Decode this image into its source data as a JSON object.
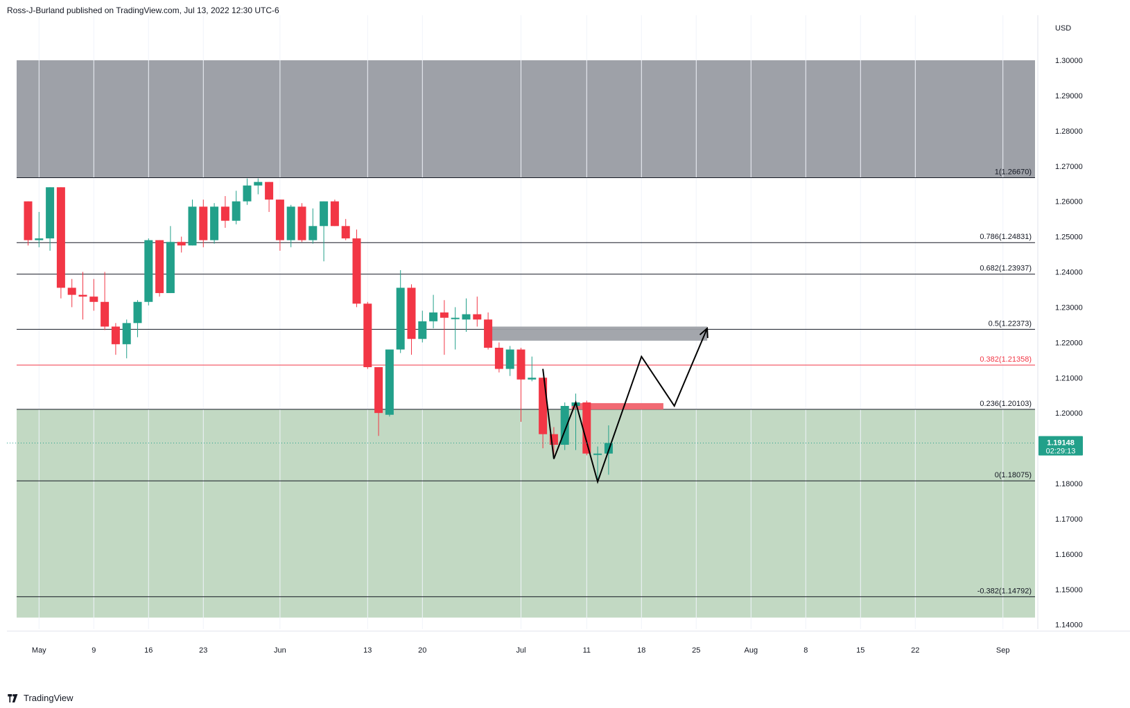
{
  "header": {
    "author": "Ross-J-Burland",
    "published": "published on TradingView.com, Jul 13, 2022 12:30 UTC-6"
  },
  "footer": {
    "brand": "TradingView",
    "logo_icon": "tradingview-logo-icon"
  },
  "colors": {
    "up": "#26a69a",
    "up_body": "#22a08a",
    "down": "#f23645",
    "resistance_zone": "#9ea1a8",
    "support_zone": "#c2d9c3",
    "supply_box": "#f0626c",
    "price_label": "#22a08a"
  },
  "chart_data": {
    "type": "candlestick",
    "currency": "USD",
    "price_axis": {
      "ticks": [
        1.3,
        1.29,
        1.28,
        1.27,
        1.26,
        1.25,
        1.24,
        1.23,
        1.22,
        1.21,
        1.2,
        1.18,
        1.17,
        1.16,
        1.15,
        1.14
      ],
      "tick_labels": [
        "1.30000",
        "1.29000",
        "1.28000",
        "1.27000",
        "1.26000",
        "1.25000",
        "1.24000",
        "1.23000",
        "1.22000",
        "1.21000",
        "1.20000",
        "1.18000",
        "1.17000",
        "1.16000",
        "1.15000",
        "1.14000"
      ],
      "range": [
        1.138,
        1.307
      ]
    },
    "time_axis": {
      "ticks": [
        {
          "date": "2022-05-02",
          "label": "May"
        },
        {
          "date": "2022-05-09",
          "label": "9"
        },
        {
          "date": "2022-05-16",
          "label": "16"
        },
        {
          "date": "2022-05-23",
          "label": "23"
        },
        {
          "date": "2022-06-01",
          "label": "Jun"
        },
        {
          "date": "2022-06-13",
          "label": "13"
        },
        {
          "date": "2022-06-20",
          "label": "20"
        },
        {
          "date": "2022-07-01",
          "label": "Jul"
        },
        {
          "date": "2022-07-11",
          "label": "11"
        },
        {
          "date": "2022-07-18",
          "label": "18"
        },
        {
          "date": "2022-07-25",
          "label": "25"
        },
        {
          "date": "2022-08-01",
          "label": "Aug"
        },
        {
          "date": "2022-08-08",
          "label": "8"
        },
        {
          "date": "2022-08-15",
          "label": "15"
        },
        {
          "date": "2022-08-22",
          "label": "22"
        },
        {
          "date": "2022-09-01",
          "label": "Sep"
        }
      ]
    },
    "current_price": {
      "value": 1.19148,
      "label": "1.19148",
      "countdown": "02:29:13"
    },
    "fib_levels": [
      {
        "ratio": "1",
        "value": 1.2667,
        "label": "1(1.26670)",
        "color": "#131722"
      },
      {
        "ratio": "0.786",
        "value": 1.24831,
        "label": "0.786(1.24831)",
        "color": "#131722"
      },
      {
        "ratio": "0.682",
        "value": 1.23937,
        "label": "0.682(1.23937)",
        "color": "#131722"
      },
      {
        "ratio": "0.5",
        "value": 1.22373,
        "label": "0.5(1.22373)",
        "color": "#131722"
      },
      {
        "ratio": "0.382",
        "value": 1.21358,
        "label": "0.382(1.21358)",
        "color": "#f23645"
      },
      {
        "ratio": "0.236",
        "value": 1.20103,
        "label": "0.236(1.20103)",
        "color": "#131722"
      },
      {
        "ratio": "0",
        "value": 1.18075,
        "label": "0(1.18075)",
        "color": "#131722"
      },
      {
        "ratio": "-0.382",
        "value": 1.14792,
        "label": "-0.382(1.14792)",
        "color": "#131722"
      }
    ],
    "zones": [
      {
        "name": "resistance-zone",
        "from_date": "2022-04-29",
        "to_date": "2022-09-28",
        "low": 1.2667,
        "high": 1.3
      },
      {
        "name": "support-zone",
        "from_date": "2022-04-29",
        "to_date": "2022-09-28",
        "low": 1.142,
        "high": 1.201
      },
      {
        "name": "gray-target-box",
        "from_date": "2022-06-28",
        "to_date": "2022-07-26",
        "low": 1.2205,
        "high": 1.2245
      },
      {
        "name": "red-supply-box",
        "from_date": "2022-07-08",
        "to_date": "2022-07-20",
        "low": 1.201,
        "high": 1.2028
      }
    ],
    "projection_path": [
      {
        "date": "2022-07-05",
        "price": 1.2125
      },
      {
        "date": "2022-07-06",
        "price": 1.187
      },
      {
        "date": "2022-07-08",
        "price": 1.203
      },
      {
        "date": "2022-07-12",
        "price": 1.1805
      },
      {
        "date": "2022-07-18",
        "price": 1.216
      },
      {
        "date": "2022-07-21",
        "price": 1.202
      },
      {
        "date": "2022-07-26",
        "price": 1.224
      }
    ],
    "candles": [
      {
        "date": "2022-04-28",
        "open": 1.247,
        "high": 1.26,
        "low": 1.2455,
        "close": 1.26
      },
      {
        "date": "2022-04-29",
        "open": 1.26,
        "high": 1.26,
        "low": 1.2475,
        "close": 1.249
      },
      {
        "date": "2022-05-02",
        "open": 1.249,
        "high": 1.257,
        "low": 1.247,
        "close": 1.2495
      },
      {
        "date": "2022-05-03",
        "open": 1.2495,
        "high": 1.264,
        "low": 1.246,
        "close": 1.264
      },
      {
        "date": "2022-05-04",
        "open": 1.264,
        "high": 1.264,
        "low": 1.2325,
        "close": 1.2355
      },
      {
        "date": "2022-05-05",
        "open": 1.2355,
        "high": 1.238,
        "low": 1.23,
        "close": 1.2335
      },
      {
        "date": "2022-05-06",
        "open": 1.2335,
        "high": 1.24,
        "low": 1.2265,
        "close": 1.233
      },
      {
        "date": "2022-05-09",
        "open": 1.233,
        "high": 1.238,
        "low": 1.229,
        "close": 1.2315
      },
      {
        "date": "2022-05-10",
        "open": 1.2315,
        "high": 1.24,
        "low": 1.2235,
        "close": 1.2245
      },
      {
        "date": "2022-05-11",
        "open": 1.2245,
        "high": 1.2255,
        "low": 1.2165,
        "close": 1.2195
      },
      {
        "date": "2022-05-12",
        "open": 1.2195,
        "high": 1.2265,
        "low": 1.2155,
        "close": 1.2255
      },
      {
        "date": "2022-05-13",
        "open": 1.2255,
        "high": 1.232,
        "low": 1.2215,
        "close": 1.2315
      },
      {
        "date": "2022-05-16",
        "open": 1.2315,
        "high": 1.2495,
        "low": 1.2305,
        "close": 1.249
      },
      {
        "date": "2022-05-17",
        "open": 1.249,
        "high": 1.249,
        "low": 1.233,
        "close": 1.234
      },
      {
        "date": "2022-05-18",
        "open": 1.234,
        "high": 1.253,
        "low": 1.234,
        "close": 1.2485
      },
      {
        "date": "2022-05-19",
        "open": 1.2485,
        "high": 1.25,
        "low": 1.2455,
        "close": 1.2475
      },
      {
        "date": "2022-05-20",
        "open": 1.2475,
        "high": 1.2605,
        "low": 1.2475,
        "close": 1.2585
      },
      {
        "date": "2022-05-23",
        "open": 1.2585,
        "high": 1.2605,
        "low": 1.247,
        "close": 1.249
      },
      {
        "date": "2022-05-24",
        "open": 1.249,
        "high": 1.2595,
        "low": 1.248,
        "close": 1.2585
      },
      {
        "date": "2022-05-25",
        "open": 1.2585,
        "high": 1.2615,
        "low": 1.2525,
        "close": 1.2545
      },
      {
        "date": "2022-05-26",
        "open": 1.2545,
        "high": 1.263,
        "low": 1.2535,
        "close": 1.26
      },
      {
        "date": "2022-05-27",
        "open": 1.26,
        "high": 1.2665,
        "low": 1.259,
        "close": 1.2645
      },
      {
        "date": "2022-05-30",
        "open": 1.2645,
        "high": 1.2665,
        "low": 1.262,
        "close": 1.2655
      },
      {
        "date": "2022-05-31",
        "open": 1.2655,
        "high": 1.2655,
        "low": 1.257,
        "close": 1.2605
      },
      {
        "date": "2022-06-01",
        "open": 1.2605,
        "high": 1.2605,
        "low": 1.246,
        "close": 1.249
      },
      {
        "date": "2022-06-02",
        "open": 1.249,
        "high": 1.259,
        "low": 1.247,
        "close": 1.2585
      },
      {
        "date": "2022-06-03",
        "open": 1.2585,
        "high": 1.2595,
        "low": 1.2485,
        "close": 1.249
      },
      {
        "date": "2022-06-06",
        "open": 1.249,
        "high": 1.258,
        "low": 1.248,
        "close": 1.253
      },
      {
        "date": "2022-06-07",
        "open": 1.253,
        "high": 1.26,
        "low": 1.243,
        "close": 1.26
      },
      {
        "date": "2022-06-08",
        "open": 1.26,
        "high": 1.2605,
        "low": 1.253,
        "close": 1.253
      },
      {
        "date": "2022-06-09",
        "open": 1.253,
        "high": 1.255,
        "low": 1.249,
        "close": 1.2495
      },
      {
        "date": "2022-06-10",
        "open": 1.2495,
        "high": 1.252,
        "low": 1.23,
        "close": 1.231
      },
      {
        "date": "2022-06-13",
        "open": 1.231,
        "high": 1.2315,
        "low": 1.2125,
        "close": 1.213
      },
      {
        "date": "2022-06-14",
        "open": 1.213,
        "high": 1.213,
        "low": 1.1935,
        "close": 1.2
      },
      {
        "date": "2022-06-15",
        "open": 1.1995,
        "high": 1.218,
        "low": 1.199,
        "close": 1.218
      },
      {
        "date": "2022-06-16",
        "open": 1.218,
        "high": 1.2405,
        "low": 1.217,
        "close": 1.2355
      },
      {
        "date": "2022-06-17",
        "open": 1.2355,
        "high": 1.2365,
        "low": 1.2165,
        "close": 1.221
      },
      {
        "date": "2022-06-20",
        "open": 1.221,
        "high": 1.229,
        "low": 1.22,
        "close": 1.226
      },
      {
        "date": "2022-06-21",
        "open": 1.226,
        "high": 1.2335,
        "low": 1.224,
        "close": 1.2285
      },
      {
        "date": "2022-06-22",
        "open": 1.2285,
        "high": 1.232,
        "low": 1.2165,
        "close": 1.227
      },
      {
        "date": "2022-06-23",
        "open": 1.227,
        "high": 1.23,
        "low": 1.218,
        "close": 1.227
      },
      {
        "date": "2022-06-24",
        "open": 1.2265,
        "high": 1.2325,
        "low": 1.223,
        "close": 1.228
      },
      {
        "date": "2022-06-27",
        "open": 1.228,
        "high": 1.233,
        "low": 1.2245,
        "close": 1.2265
      },
      {
        "date": "2022-06-28",
        "open": 1.2265,
        "high": 1.2285,
        "low": 1.218,
        "close": 1.2185
      },
      {
        "date": "2022-06-29",
        "open": 1.2185,
        "high": 1.22,
        "low": 1.2115,
        "close": 1.2125
      },
      {
        "date": "2022-06-30",
        "open": 1.2125,
        "high": 1.219,
        "low": 1.2105,
        "close": 1.218
      },
      {
        "date": "2022-07-01",
        "open": 1.218,
        "high": 1.2185,
        "low": 1.1975,
        "close": 1.2095
      },
      {
        "date": "2022-07-04",
        "open": 1.2095,
        "high": 1.216,
        "low": 1.209,
        "close": 1.21
      },
      {
        "date": "2022-07-05",
        "open": 1.21,
        "high": 1.21,
        "low": 1.19,
        "close": 1.194
      },
      {
        "date": "2022-07-06",
        "open": 1.194,
        "high": 1.196,
        "low": 1.188,
        "close": 1.191
      },
      {
        "date": "2022-07-07",
        "open": 1.191,
        "high": 1.203,
        "low": 1.1895,
        "close": 1.202
      },
      {
        "date": "2022-07-08",
        "open": 1.202,
        "high": 1.2055,
        "low": 1.1895,
        "close": 1.203
      },
      {
        "date": "2022-07-11",
        "open": 1.203,
        "high": 1.2035,
        "low": 1.188,
        "close": 1.1885
      },
      {
        "date": "2022-07-12",
        "open": 1.1885,
        "high": 1.1905,
        "low": 1.1805,
        "close": 1.1885
      },
      {
        "date": "2022-07-13",
        "open": 1.1885,
        "high": 1.1965,
        "low": 1.1825,
        "close": 1.1915
      }
    ]
  }
}
